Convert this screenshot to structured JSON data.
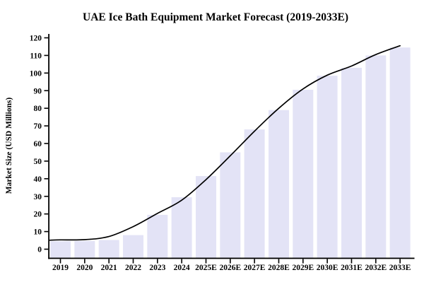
{
  "chart_data": {
    "type": "bar",
    "title": "UAE Ice Bath Equipment Market Forecast (2019-2033E)",
    "xlabel": "",
    "ylabel": "Market Size (USD Millions)",
    "ylim": [
      0,
      120
    ],
    "y_ticks": [
      0,
      10,
      20,
      30,
      40,
      50,
      60,
      70,
      80,
      90,
      100,
      110,
      120
    ],
    "grid": false,
    "legend": "none",
    "categories": [
      "2019",
      "2020",
      "2021",
      "2022",
      "2023",
      "2024",
      "2025E",
      "2026E",
      "2027E",
      "2028E",
      "2029E",
      "2030E",
      "2031E",
      "2032E",
      "2033E"
    ],
    "series": [
      {
        "name": "Market Size (USD Millions)",
        "type": "bar",
        "color": "#E3E3F6",
        "values": [
          4.5,
          4.6,
          5.2,
          8.0,
          19.5,
          29.5,
          41.5,
          55.0,
          68.0,
          79.0,
          90.5,
          98.5,
          103.0,
          110.0,
          114.5
        ]
      },
      {
        "name": "Smoothed trend line",
        "type": "line",
        "color": "#000000",
        "values": [
          5.3,
          5.4,
          7.2,
          12.8,
          20.3,
          27.8,
          39.5,
          53.0,
          67.0,
          80.0,
          91.0,
          98.8,
          104.0,
          110.5,
          115.5
        ]
      }
    ]
  },
  "colors": {
    "background": "#FFFFFF",
    "axis": "#000000",
    "text": "#000000",
    "bar_fill": "#E3E3F6",
    "trend_line": "#000000"
  }
}
